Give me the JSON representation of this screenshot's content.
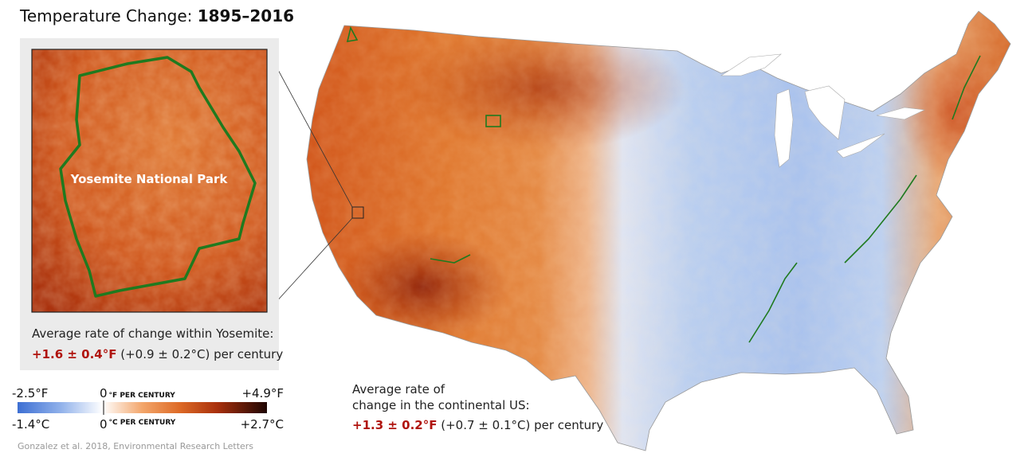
{
  "title": {
    "prefix": "Temperature Change:",
    "years": "1895–2016"
  },
  "inset": {
    "label": "Yosemite National Park",
    "caption": "Average rate of change within Yosemite:",
    "rate_f": "+1.6 ± 0.4°F",
    "rate_c": "(+0.9 ± 0.2°C) per century"
  },
  "legend": {
    "min_f": "-2.5°F",
    "zero_f": "0",
    "unit_f": "°F PER CENTURY",
    "max_f": "+4.9°F",
    "min_c": "-1.4°C",
    "zero_c": "0",
    "unit_c": "°C PER CENTURY",
    "max_c": "+2.7°C"
  },
  "us": {
    "caption_line1": "Average rate of",
    "caption_line2": "change in the continental US:",
    "rate_f": "+1.3 ± 0.2°F",
    "rate_c": "(+0.7 ± 0.1°C) per century"
  },
  "source": "Gonzalez et al. 2018, Environmental Research Letters"
}
